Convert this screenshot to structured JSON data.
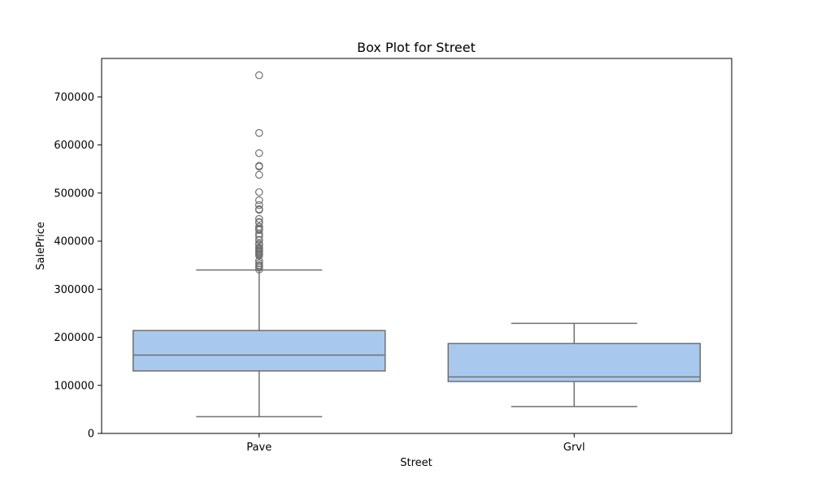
{
  "chart_data": {
    "type": "box",
    "title": "Box Plot for Street",
    "xlabel": "Street",
    "ylabel": "SalePrice",
    "ylim": [
      0,
      780000
    ],
    "yticks": [
      0,
      100000,
      200000,
      300000,
      400000,
      500000,
      600000,
      700000
    ],
    "ytick_labels": [
      "0",
      "100000",
      "200000",
      "300000",
      "400000",
      "500000",
      "600000",
      "700000"
    ],
    "grid": false,
    "colors": {
      "box_fill": "#a9c8ed",
      "line": "#707070",
      "axis": "#000000"
    },
    "categories": [
      "Pave",
      "Grvl"
    ],
    "boxes": [
      {
        "category": "Pave",
        "whisker_low": 34900,
        "q1": 130000,
        "median": 163000,
        "q3": 214000,
        "whisker_high": 340000,
        "outliers": [
          745000,
          625000,
          582933,
          556581,
          555000,
          538000,
          501837,
          485000,
          475000,
          466500,
          465000,
          446261,
          440000,
          438780,
          430000,
          426000,
          424870,
          423000,
          415298,
          410000,
          402861,
          402000,
          395192,
          392500,
          392000,
          386250,
          385000,
          384500,
          383970,
          381000,
          378500,
          377500,
          377426,
          375000,
          372500,
          372402,
          370878,
          369900,
          359100,
          354000,
          350000,
          348000,
          345000,
          341000
        ]
      },
      {
        "category": "Grvl",
        "whisker_low": 55993,
        "q1": 108000,
        "median": 117500,
        "q3": 187000,
        "whisker_high": 228950,
        "outliers": []
      }
    ]
  }
}
